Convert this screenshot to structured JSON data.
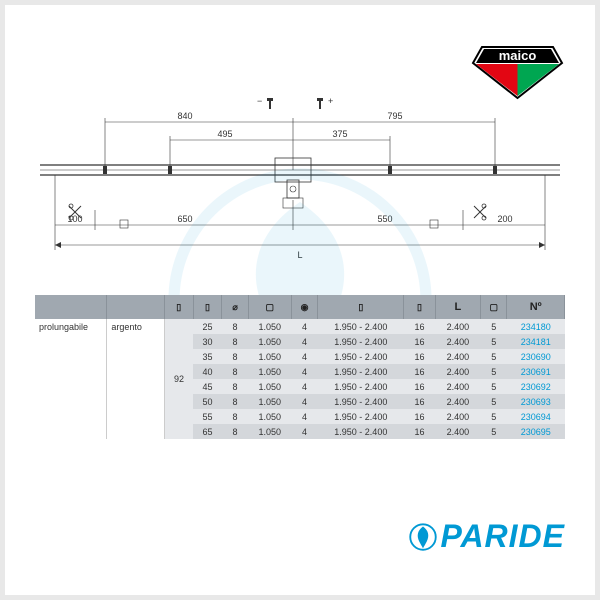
{
  "brand": {
    "maico": "maico",
    "paride": "PARIDE"
  },
  "diagram": {
    "dims": {
      "top_left": "840",
      "top_right": "795",
      "mid_left": "495",
      "mid_right": "375",
      "bot_left": "650",
      "bot_right": "550",
      "far_left": "100",
      "far_right": "200",
      "minus": "−",
      "plus": "+",
      "total": "L"
    }
  },
  "table": {
    "headers": {
      "c1": "",
      "c2": "",
      "c3": "⌀",
      "c4": "",
      "c5": "",
      "c6": "",
      "c7": "",
      "c8": "L",
      "c9": "",
      "c10": "Nº"
    },
    "leftlabel1": "prolungabile",
    "leftlabel2": "argento",
    "span92": "92",
    "rows": [
      {
        "c3": "25",
        "c4": "8",
        "c5": "1.050",
        "c6": "4",
        "c7": "1.950 - 2.400",
        "c8": "16",
        "c9": "2.400",
        "c10": "5",
        "c11": "234180"
      },
      {
        "c3": "30",
        "c4": "8",
        "c5": "1.050",
        "c6": "4",
        "c7": "1.950 - 2.400",
        "c8": "16",
        "c9": "2.400",
        "c10": "5",
        "c11": "234181"
      },
      {
        "c3": "35",
        "c4": "8",
        "c5": "1.050",
        "c6": "4",
        "c7": "1.950 - 2.400",
        "c8": "16",
        "c9": "2.400",
        "c10": "5",
        "c11": "230690"
      },
      {
        "c3": "40",
        "c4": "8",
        "c5": "1.050",
        "c6": "4",
        "c7": "1.950 - 2.400",
        "c8": "16",
        "c9": "2.400",
        "c10": "5",
        "c11": "230691"
      },
      {
        "c3": "45",
        "c4": "8",
        "c5": "1.050",
        "c6": "4",
        "c7": "1.950 - 2.400",
        "c8": "16",
        "c9": "2.400",
        "c10": "5",
        "c11": "230692"
      },
      {
        "c3": "50",
        "c4": "8",
        "c5": "1.050",
        "c6": "4",
        "c7": "1.950 - 2.400",
        "c8": "16",
        "c9": "2.400",
        "c10": "5",
        "c11": "230693"
      },
      {
        "c3": "55",
        "c4": "8",
        "c5": "1.050",
        "c6": "4",
        "c7": "1.950 - 2.400",
        "c8": "16",
        "c9": "2.400",
        "c10": "5",
        "c11": "230694"
      },
      {
        "c3": "65",
        "c4": "8",
        "c5": "1.050",
        "c6": "4",
        "c7": "1.950 - 2.400",
        "c8": "16",
        "c9": "2.400",
        "c10": "5",
        "c11": "230695"
      }
    ]
  }
}
